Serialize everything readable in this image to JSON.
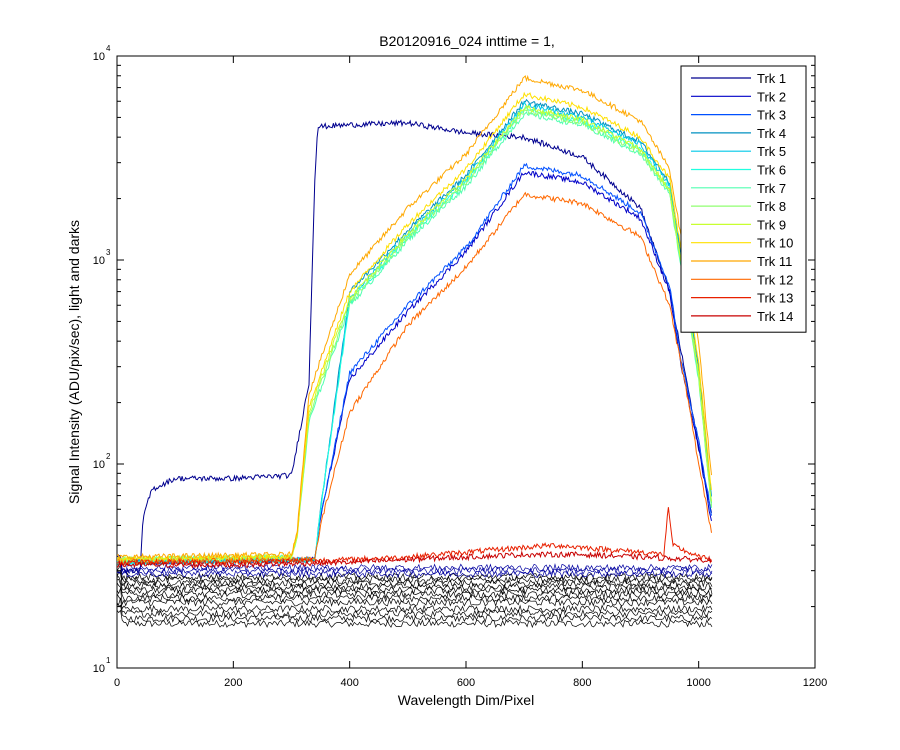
{
  "chart_data": {
    "type": "line",
    "title": "B20120916_024 inttime = 1,",
    "xlabel": "Wavelength Dim/Pixel",
    "ylabel": "Signal Intensity (ADU/pix/sec), light and darks",
    "xlim": [
      0,
      1200
    ],
    "ylim": [
      10,
      10000
    ],
    "y_scale": "log",
    "grid": false,
    "legend_position": "top-right",
    "x_ticks": [
      0,
      200,
      400,
      600,
      800,
      1000,
      1200
    ],
    "y_ticks": [
      {
        "base": "10",
        "exp": "1",
        "value": 10
      },
      {
        "base": "10",
        "exp": "2",
        "value": 100
      },
      {
        "base": "10",
        "exp": "3",
        "value": 1000
      },
      {
        "base": "10",
        "exp": "4",
        "value": 10000
      }
    ],
    "series": [
      {
        "name": "Trk 1",
        "color": "#00008F",
        "x": [
          0,
          40,
          45,
          60,
          100,
          200,
          300,
          330,
          340,
          345,
          400,
          500,
          600,
          700,
          800,
          900,
          950,
          980,
          1000,
          1023
        ],
        "y": [
          30,
          30,
          55,
          75,
          85,
          85,
          88,
          250,
          2500,
          4500,
          4600,
          4700,
          4200,
          4000,
          3200,
          1800,
          700,
          250,
          120,
          55
        ]
      },
      {
        "name": "Trk 2",
        "color": "#0000C8",
        "x": [
          0,
          340,
          350,
          400,
          500,
          600,
          700,
          800,
          900,
          950,
          970,
          1000,
          1023
        ],
        "y": [
          33,
          34,
          55,
          260,
          560,
          1100,
          2700,
          2400,
          1600,
          700,
          300,
          120,
          50
        ]
      },
      {
        "name": "Trk 3",
        "color": "#0050FF",
        "x": [
          0,
          340,
          350,
          400,
          500,
          600,
          700,
          800,
          900,
          950,
          970,
          1000,
          1023
        ],
        "y": [
          33,
          34,
          55,
          280,
          600,
          1150,
          2900,
          2600,
          1700,
          750,
          320,
          130,
          55
        ]
      },
      {
        "name": "Trk 4",
        "color": "#0090C0",
        "x": [
          0,
          340,
          350,
          400,
          500,
          600,
          700,
          800,
          900,
          950,
          1000,
          1023
        ],
        "y": [
          33,
          34,
          60,
          700,
          1400,
          2600,
          6000,
          5200,
          3800,
          2400,
          300,
          65
        ]
      },
      {
        "name": "Trk 5",
        "color": "#00C8E8",
        "x": [
          0,
          340,
          350,
          400,
          500,
          600,
          700,
          800,
          900,
          950,
          1000,
          1023
        ],
        "y": [
          33,
          34,
          60,
          650,
          1350,
          2500,
          5800,
          5000,
          3700,
          2300,
          280,
          60
        ]
      },
      {
        "name": "Trk 6",
        "color": "#20FFE0",
        "x": [
          0,
          340,
          350,
          400,
          500,
          600,
          700,
          800,
          900,
          950,
          1000,
          1023
        ],
        "y": [
          33,
          34,
          60,
          620,
          1300,
          2400,
          5500,
          4800,
          3500,
          2200,
          270,
          58
        ]
      },
      {
        "name": "Trk 7",
        "color": "#50FFB0",
        "x": [
          0,
          300,
          310,
          330,
          400,
          500,
          600,
          700,
          800,
          900,
          950,
          1000,
          1023
        ],
        "y": [
          34,
          35,
          45,
          160,
          600,
          1250,
          2300,
          5200,
          4600,
          3300,
          2100,
          260,
          57
        ]
      },
      {
        "name": "Trk 8",
        "color": "#90FF70",
        "x": [
          0,
          300,
          310,
          330,
          400,
          500,
          600,
          700,
          800,
          900,
          950,
          1000,
          1023
        ],
        "y": [
          34,
          35,
          45,
          170,
          620,
          1300,
          2400,
          5400,
          4700,
          3400,
          2150,
          270,
          58
        ]
      },
      {
        "name": "Trk 9",
        "color": "#C8FF30",
        "x": [
          0,
          300,
          310,
          330,
          400,
          500,
          600,
          700,
          800,
          900,
          950,
          1000,
          1023
        ],
        "y": [
          34,
          35,
          45,
          180,
          650,
          1350,
          2500,
          5600,
          4900,
          3500,
          2200,
          280,
          60
        ]
      },
      {
        "name": "Trk 10",
        "color": "#FFE000",
        "x": [
          0,
          300,
          310,
          330,
          400,
          500,
          600,
          700,
          800,
          900,
          950,
          1000,
          1023
        ],
        "y": [
          34,
          35,
          46,
          190,
          700,
          1500,
          2800,
          6500,
          5600,
          4000,
          2500,
          320,
          68
        ]
      },
      {
        "name": "Trk 11",
        "color": "#FFA800",
        "x": [
          0,
          300,
          310,
          330,
          400,
          500,
          600,
          700,
          800,
          900,
          950,
          1000,
          1023
        ],
        "y": [
          35,
          36,
          48,
          220,
          850,
          1800,
          3300,
          7800,
          6800,
          4800,
          2800,
          400,
          80
        ]
      },
      {
        "name": "Trk 12",
        "color": "#FF6800",
        "x": [
          0,
          340,
          350,
          400,
          500,
          600,
          700,
          800,
          900,
          950,
          980,
          1000,
          1023
        ],
        "y": [
          33,
          34,
          50,
          180,
          480,
          920,
          2100,
          1900,
          1300,
          600,
          220,
          100,
          45
        ]
      },
      {
        "name": "Trk 13",
        "color": "#E82000",
        "x": [
          0,
          200,
          400,
          500,
          600,
          700,
          750,
          800,
          900,
          940,
          948,
          955,
          1000,
          1023
        ],
        "y": [
          33,
          33,
          34,
          35,
          37,
          39,
          40,
          39,
          37,
          36,
          62,
          40,
          35,
          34
        ]
      },
      {
        "name": "Trk 14",
        "color": "#C80000",
        "x": [
          0,
          200,
          400,
          500,
          600,
          700,
          750,
          800,
          900,
          1000,
          1023
        ],
        "y": [
          32,
          32,
          33,
          34,
          35,
          36,
          36,
          36,
          35,
          34,
          34
        ]
      }
    ]
  }
}
